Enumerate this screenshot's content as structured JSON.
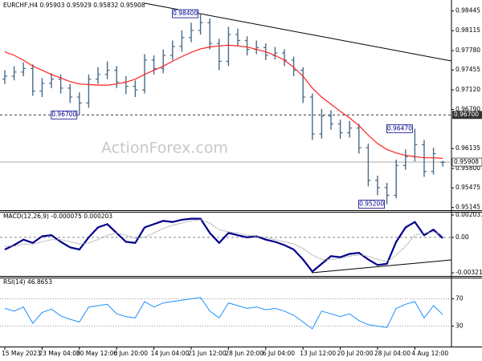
{
  "chart_data": [
    {
      "type": "ohlc",
      "title": "EURCHF,H4",
      "watermark": "ActionForex.com",
      "color": "#4a6a85",
      "categories": [
        "15 May 2023",
        null,
        null,
        null,
        "23 May 04:00",
        null,
        null,
        null,
        "30 May 12:00",
        null,
        null,
        null,
        "6 Jun 20:00",
        null,
        null,
        null,
        "14 Jun 04:00",
        null,
        null,
        null,
        "21 Jun 12:00",
        null,
        null,
        null,
        "28 Jun 20:00",
        null,
        null,
        null,
        "6 Jul 04:00",
        null,
        null,
        null,
        "13 Jul 12:00",
        null,
        null,
        null,
        "20 Jul 20:00",
        null,
        null,
        null,
        "28 Jul 04:00",
        null,
        null,
        null,
        "4 Aug 12:00",
        null,
        null,
        null
      ],
      "open": [
        0.973,
        0.9735,
        0.9742,
        0.9748,
        0.971,
        0.9723,
        0.973,
        0.9715,
        0.97,
        0.969,
        0.973,
        0.9738,
        0.9745,
        0.9725,
        0.9718,
        0.9712,
        0.9762,
        0.9748,
        0.977,
        0.9785,
        0.98,
        0.9812,
        0.9825,
        0.979,
        0.976,
        0.9805,
        0.9795,
        0.978,
        0.9783,
        0.977,
        0.9774,
        0.9762,
        0.9745,
        0.97,
        0.9638,
        0.9668,
        0.9655,
        0.964,
        0.9648,
        0.9615,
        0.956,
        0.9548,
        0.9535,
        0.9585,
        0.96,
        0.962,
        0.9575,
        0.95903
      ],
      "high": [
        0.9745,
        0.9752,
        0.9758,
        0.9755,
        0.9732,
        0.974,
        0.9738,
        0.9722,
        0.9708,
        0.9738,
        0.975,
        0.976,
        0.9752,
        0.9735,
        0.9728,
        0.9772,
        0.977,
        0.978,
        0.9795,
        0.9812,
        0.9825,
        0.984,
        0.9832,
        0.9798,
        0.9818,
        0.9815,
        0.9802,
        0.9795,
        0.979,
        0.9784,
        0.978,
        0.9768,
        0.975,
        0.9706,
        0.968,
        0.9678,
        0.9662,
        0.966,
        0.9655,
        0.9622,
        0.9568,
        0.9556,
        0.9595,
        0.9612,
        0.9647,
        0.9628,
        0.9615,
        0.95929
      ],
      "low": [
        0.9722,
        0.9728,
        0.9735,
        0.9702,
        0.97,
        0.9715,
        0.9706,
        0.969,
        0.967,
        0.9682,
        0.9722,
        0.973,
        0.9715,
        0.9705,
        0.97,
        0.9706,
        0.9738,
        0.974,
        0.9762,
        0.9776,
        0.9792,
        0.9805,
        0.978,
        0.9745,
        0.9752,
        0.9786,
        0.977,
        0.9772,
        0.9762,
        0.9763,
        0.9752,
        0.9735,
        0.969,
        0.9628,
        0.963,
        0.9645,
        0.963,
        0.9632,
        0.9605,
        0.955,
        0.9535,
        0.952,
        0.953,
        0.9578,
        0.9592,
        0.9566,
        0.957,
        0.95832
      ],
      "close": [
        0.9735,
        0.9742,
        0.9748,
        0.971,
        0.9723,
        0.973,
        0.9715,
        0.97,
        0.969,
        0.973,
        0.9738,
        0.9745,
        0.9725,
        0.9718,
        0.9712,
        0.9762,
        0.9748,
        0.977,
        0.9785,
        0.98,
        0.9812,
        0.9825,
        0.979,
        0.976,
        0.9805,
        0.9795,
        0.978,
        0.9783,
        0.977,
        0.9774,
        0.9762,
        0.9745,
        0.97,
        0.9638,
        0.9668,
        0.9655,
        0.964,
        0.9648,
        0.9615,
        0.956,
        0.9548,
        0.9535,
        0.9585,
        0.96,
        0.962,
        0.9575,
        0.9605,
        0.95908
      ],
      "overlay": {
        "color": "#ff2020",
        "values": [
          0.9776,
          0.977,
          0.9762,
          0.9752,
          0.9745,
          0.9738,
          0.9732,
          0.9726,
          0.9722,
          0.9721,
          0.972,
          0.972,
          0.9722,
          0.9725,
          0.973,
          0.9738,
          0.9745,
          0.9752,
          0.976,
          0.9768,
          0.9775,
          0.9781,
          0.9784,
          0.9786,
          0.9787,
          0.9786,
          0.9784,
          0.978,
          0.9776,
          0.977,
          0.9762,
          0.975,
          0.9735,
          0.9715,
          0.97,
          0.9688,
          0.9676,
          0.9665,
          0.9652,
          0.9636,
          0.9622,
          0.9612,
          0.9606,
          0.9602,
          0.96,
          0.9598,
          0.9598,
          0.9597
        ]
      },
      "levels": [
        {
          "value": 0.967,
          "label": "0.96700"
        }
      ],
      "annotations": [
        {
          "value": 0.984,
          "label": "0.98400"
        },
        {
          "value": 0.967,
          "label": "0.96700"
        },
        {
          "value": 0.9647,
          "label": "0.96470"
        },
        {
          "value": 0.952,
          "label": "0.95200"
        }
      ],
      "ylim": [
        0.951,
        0.9863
      ],
      "yticks": [
        0.98445,
        0.98115,
        {
          "value": 0.9778,
          "label": "0.97780"
        },
        0.97455,
        {
          "value": 0.9712,
          "label": "0.97120"
        },
        {
          "value": 0.9679,
          "label": "0.96790"
        },
        0.96135,
        {
          "value": 0.958,
          "label": "0.95800"
        },
        0.95475,
        0.95145
      ]
    },
    {
      "type": "line",
      "title": "MACD(12,26,9)",
      "series": [
        {
          "color": "#00008b",
          "values": [
            -0.0011,
            -0.0007,
            -0.0002,
            -0.0005,
            0.0001,
            0.0002,
            -0.0004,
            -0.0009,
            -0.0011,
            0,
            0.0009,
            0.0012,
            0.0004,
            -0.0004,
            -0.0005,
            0.0009,
            0.0012,
            0.0015,
            0.0014,
            0.0016,
            0.0017,
            0.0017,
            0.0004,
            -0.0005,
            0.0004,
            0.0002,
            0,
            0.0001,
            -0.0002,
            -0.0004,
            -0.0007,
            -0.0011,
            -0.002,
            -0.0031,
            -0.0024,
            -0.0017,
            -0.0018,
            -0.0015,
            -0.0014,
            -0.002,
            -0.0025,
            -0.0024,
            -0.0004,
            0.0009,
            0.0014,
            0.0002,
            0.0007,
            -7.5e-05
          ]
        },
        {
          "color": "#a0a0a0",
          "values": [
            -0.0008,
            -0.0008,
            -0.0006,
            -0.0006,
            -0.0004,
            -0.0002,
            -0.0002,
            -0.0004,
            -0.0006,
            -0.0005,
            -0.0002,
            0.0002,
            0.0004,
            0.0002,
            -0.0001,
            0,
            0.0004,
            0.0008,
            0.0011,
            0.0013,
            0.0015,
            0.0016,
            0.0013,
            0.0007,
            0.0005,
            0.0004,
            0.0002,
            0.0001,
            0,
            -0.0002,
            -0.0004,
            -0.0006,
            -0.001,
            -0.0016,
            -0.002,
            -0.002,
            -0.0019,
            -0.0017,
            -0.0016,
            -0.0017,
            -0.002,
            -0.0022,
            -0.0016,
            -0.0008,
            0.0002,
            0.0004,
            0.0005,
            0.000203
          ]
        }
      ],
      "ylim": [
        -0.0035,
        0.00225
      ],
      "yticks": [
        0.002031,
        {
          "value": 0,
          "label": "0.00"
        },
        -0.003214
      ],
      "zero_line": true
    },
    {
      "type": "line",
      "title": "RSI(14)",
      "series": [
        {
          "color": "#1e90ff",
          "values": [
            56,
            52,
            58,
            34,
            50,
            55,
            45,
            40,
            36,
            58,
            60,
            62,
            48,
            44,
            42,
            66,
            58,
            64,
            66,
            68,
            70,
            72,
            52,
            42,
            64,
            60,
            56,
            58,
            54,
            56,
            52,
            46,
            36,
            26,
            52,
            48,
            44,
            48,
            38,
            32,
            30,
            28,
            56,
            62,
            66,
            42,
            60,
            46.8653
          ]
        }
      ],
      "ylim": [
        0,
        100
      ],
      "yticks": [
        70,
        30
      ],
      "grid": true
    }
  ]
}
